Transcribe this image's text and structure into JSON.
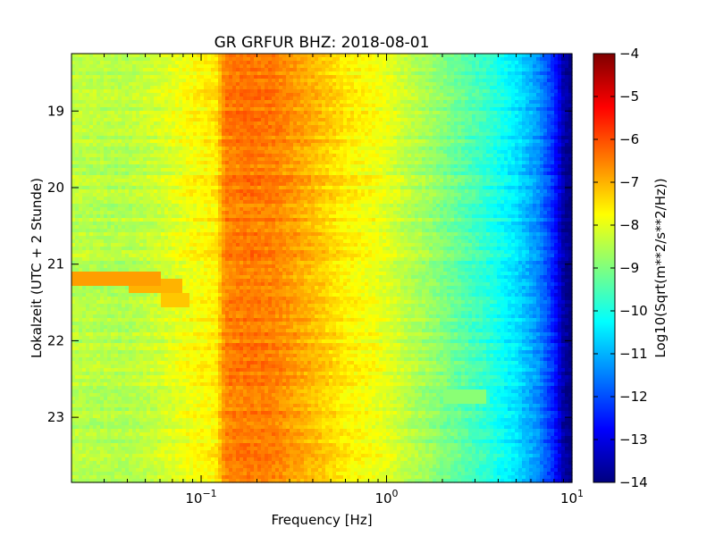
{
  "chart_data": {
    "type": "heatmap",
    "title": "GR GRFUR BHZ: 2018-08-01",
    "xlabel": "Frequency [Hz]",
    "ylabel": "Lokalzeit (UTC + 2 Stunde)",
    "xscale": "log",
    "xlim": [
      0.02,
      10
    ],
    "ylim": [
      23.85,
      18.25
    ],
    "x_ticks": [
      {
        "value": 0.1,
        "base": "10",
        "exp": "−1"
      },
      {
        "value": 1,
        "base": "10",
        "exp": "0"
      },
      {
        "value": 10,
        "base": "10",
        "exp": "1"
      }
    ],
    "y_ticks": [
      {
        "value": 19,
        "label": "19"
      },
      {
        "value": 20,
        "label": "20"
      },
      {
        "value": 21,
        "label": "21"
      },
      {
        "value": 22,
        "label": "22"
      },
      {
        "value": 23,
        "label": "23"
      }
    ],
    "colorbar": {
      "label": "Log10(Sqrt(m**2/s**2/Hz))",
      "range": [
        -14,
        -4
      ],
      "colormap": "jet",
      "ticks": [
        "−4",
        "−5",
        "−6",
        "−7",
        "−8",
        "−9",
        "−10",
        "−11",
        "−12",
        "−13",
        "−14"
      ]
    },
    "frequency_hz": [
      0.02,
      0.04,
      0.06,
      0.09,
      0.12,
      0.135,
      0.18,
      0.25,
      0.35,
      0.45,
      0.6,
      0.8,
      1.0,
      1.3,
      1.8,
      2.5,
      3.5,
      5,
      6.5,
      8,
      9,
      10
    ],
    "spectrum_log10": [
      -8.4,
      -8.5,
      -8.2,
      -7.8,
      -7.6,
      -6.5,
      -6.4,
      -6.5,
      -6.9,
      -7.2,
      -7.6,
      -7.8,
      -8.0,
      -8.4,
      -8.8,
      -9.3,
      -9.8,
      -10.5,
      -11.3,
      -12.4,
      -13.6,
      -14.0
    ],
    "events": [
      {
        "time_range": [
          21.12,
          21.3
        ],
        "freq_range_hz": [
          0.02,
          0.06
        ],
        "level_log10": -6.8
      },
      {
        "time_range": [
          21.2,
          21.38
        ],
        "freq_range_hz": [
          0.04,
          0.08
        ],
        "level_log10": -7.0
      },
      {
        "time_range": [
          21.38,
          21.55
        ],
        "freq_range_hz": [
          0.06,
          0.085
        ],
        "level_log10": -7.2
      },
      {
        "time_range": [
          22.62,
          22.82
        ],
        "freq_range_hz": [
          2.0,
          3.5
        ],
        "level_log10": -8.9
      }
    ]
  }
}
